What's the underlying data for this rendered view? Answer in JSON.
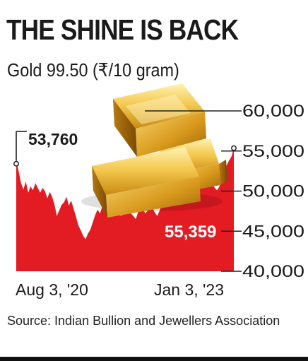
{
  "header": {
    "title": "THE SHINE IS BACK",
    "subtitle": "Gold 99.50 (₹/10 gram)"
  },
  "footer": {
    "source": "Source: Indian Bullion and Jewellers Association"
  },
  "colors": {
    "area": "#e31b23",
    "axis": "#222222",
    "label_light": "#ffffff"
  },
  "decoration": {
    "image": "gold-bars-icon"
  },
  "chart_data": {
    "type": "area",
    "title": "Gold 99.50 (₹/10 gram)",
    "x_range": [
      "2020-08-03",
      "2023-01-03"
    ],
    "x_tick_labels": [
      "Aug 3, '20",
      "Jan 3, '23"
    ],
    "ylim": [
      40000,
      60000
    ],
    "y_tick_values": [
      60000,
      55000,
      50000,
      45000,
      40000
    ],
    "y_tick_labels": [
      "60,000",
      "55,000",
      "50,000",
      "45,000",
      "40,000"
    ],
    "series": [
      {
        "values": [
          53760,
          52500,
          51000,
          50200,
          51200,
          49800,
          50600,
          50100,
          51000,
          50400,
          49800,
          50400,
          50000,
          49100,
          49900,
          49300,
          48300,
          46900,
          47600,
          48300,
          48600,
          49300,
          48200,
          48800,
          47800,
          46800,
          45700,
          45100,
          44400,
          44000,
          44700,
          45200,
          46100,
          47000,
          47700,
          47200,
          48100,
          47600,
          47200,
          46800,
          47700,
          48200,
          47700,
          47100,
          46900,
          47600,
          48300,
          47800,
          47200,
          46900,
          46500,
          47400,
          48100,
          47800,
          47200,
          47600,
          48200,
          47800,
          47300,
          46900,
          47600,
          48500,
          49400,
          50600,
          51400,
          51200,
          51600,
          52100,
          52700,
          51400,
          50800,
          51300,
          50700,
          50200,
          50700,
          51400,
          51200,
          50900,
          50300,
          50600,
          51100,
          51500,
          51000,
          50400,
          50100,
          50600,
          51600,
          52400,
          53200,
          53800,
          54300,
          55359
        ]
      }
    ],
    "annotations": [
      {
        "label": "53,760",
        "value": 53760,
        "date": "2020-08-03"
      },
      {
        "label": "55,359",
        "value": 55359,
        "date": "2023-01-03"
      }
    ],
    "grid": false
  }
}
